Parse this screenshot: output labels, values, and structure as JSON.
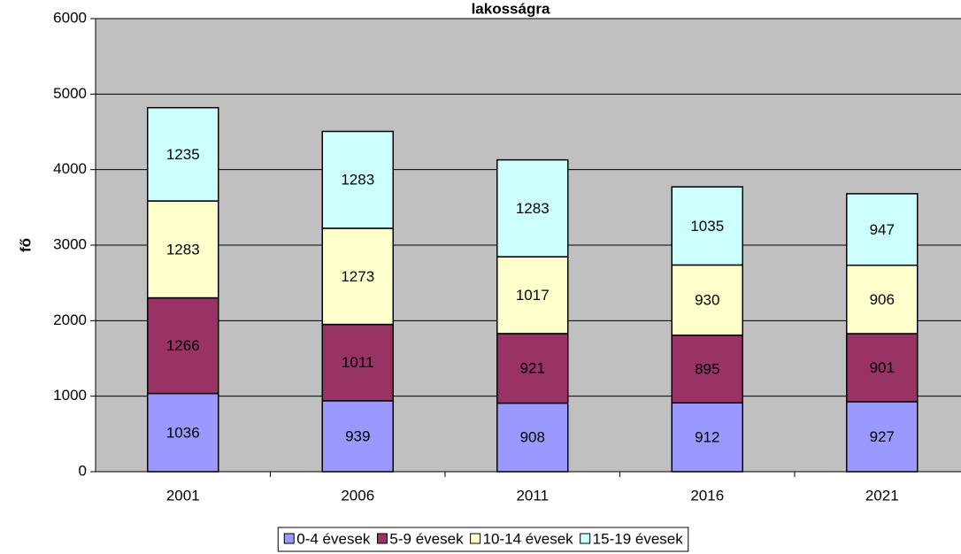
{
  "chart_data": {
    "type": "stacked_bar",
    "title": "lakosságra",
    "y_label": "fő",
    "categories": [
      "2001",
      "2006",
      "2011",
      "2016",
      "2021"
    ],
    "series": [
      {
        "name": "0-4 évesek",
        "color": "#9999ff",
        "values": [
          1036,
          939,
          908,
          912,
          927
        ]
      },
      {
        "name": "5-9 évesek",
        "color": "#993366",
        "values": [
          1266,
          1011,
          921,
          895,
          901
        ]
      },
      {
        "name": "10-14 évesek",
        "color": "#ffffcc",
        "values": [
          1283,
          1273,
          1017,
          930,
          906
        ]
      },
      {
        "name": "15-19 évesek",
        "color": "#ccffff",
        "values": [
          1235,
          1283,
          1283,
          1035,
          947
        ]
      }
    ],
    "ylim": [
      0,
      6000
    ],
    "yticks": [
      0,
      1000,
      2000,
      3000,
      4000,
      5000,
      6000
    ],
    "grid": true,
    "legend": "bottom"
  }
}
